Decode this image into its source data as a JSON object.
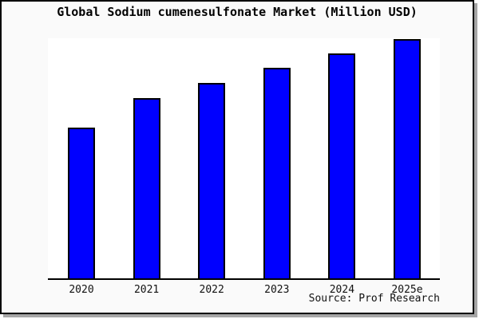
{
  "window": {
    "background_color": "#fafafa",
    "frame_border_color": "#000000",
    "frame_shadow_color": "#a6a6a6"
  },
  "chart_data": {
    "type": "bar",
    "title": "Global Sodium cumenesulfonate Market (Million USD)",
    "categories": [
      "2020",
      "2021",
      "2022",
      "2023",
      "2024",
      "2025e"
    ],
    "values": [
      63,
      75.3,
      81.7,
      88,
      94,
      100
    ],
    "values_note": "Y-axis has no ticks or labels; values estimated from bar pixel heights, normalized so the 2025e bar = 100",
    "xlabel": "",
    "ylabel": "",
    "ylim": [
      0,
      100
    ],
    "grid": false,
    "legend": false,
    "bar_color": "#0000ff",
    "bar_border_color": "#000000",
    "plot_background": "#ffffff",
    "axis_color": "#000000"
  },
  "footer": {
    "source_label": "Source: Prof Research"
  }
}
